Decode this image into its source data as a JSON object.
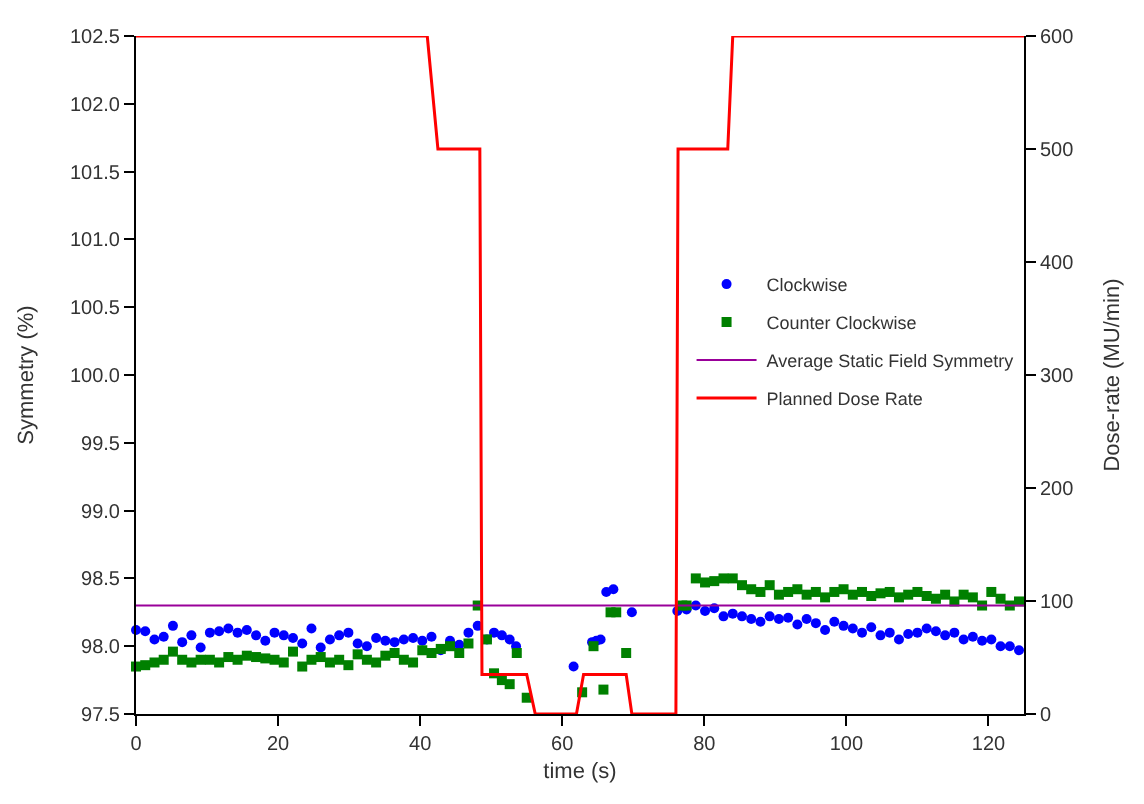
{
  "chart_data": {
    "type": "scatter",
    "xlabel": "time (s)",
    "ylabel": "Symmetry (%)",
    "y2label": "Dose-rate (MU/min)",
    "xlim": [
      0,
      125
    ],
    "xticks": [
      0,
      20,
      40,
      60,
      80,
      100,
      120
    ],
    "ylim": [
      97.5,
      102.5
    ],
    "yticks": [
      {
        "value": 97.5,
        "label": "97.5"
      },
      {
        "value": 98,
        "label": "98.0"
      },
      {
        "value": 98.5,
        "label": "98.5"
      },
      {
        "value": 99,
        "label": "99.0"
      },
      {
        "value": 99.5,
        "label": "99.5"
      },
      {
        "value": 100,
        "label": "100.0"
      },
      {
        "value": 100.5,
        "label": "100.5"
      },
      {
        "value": 101,
        "label": "101.0"
      },
      {
        "value": 101.5,
        "label": "101.5"
      },
      {
        "value": 102,
        "label": "102.0"
      },
      {
        "value": 102.5,
        "label": "102.5"
      }
    ],
    "y2lim": [
      0,
      600
    ],
    "y2ticks": [
      0,
      100,
      200,
      300,
      400,
      500,
      600
    ],
    "legend": "right",
    "series": [
      {
        "name": "Clockwise",
        "type": "scatter",
        "marker": "circle",
        "color": "#0000ff",
        "x": [
          0,
          1.3,
          2.6,
          3.9,
          5.2,
          6.5,
          7.8,
          9.1,
          10.4,
          11.7,
          13,
          14.3,
          15.6,
          16.9,
          18.2,
          19.5,
          20.8,
          22.1,
          23.4,
          24.7,
          26,
          27.3,
          28.6,
          29.9,
          31.2,
          32.5,
          33.8,
          35.1,
          36.4,
          37.7,
          39,
          40.3,
          41.6,
          42.9,
          44.2,
          45.5,
          46.8,
          48.1,
          49.4,
          50.4,
          51.5,
          52.6,
          53.5,
          61.6,
          64.2,
          64.8,
          65.4,
          66.2,
          67.2,
          69.8,
          76.2,
          77.5,
          78.8,
          80.1,
          81.4,
          82.7,
          84,
          85.3,
          86.6,
          87.9,
          89.2,
          90.5,
          91.8,
          93.1,
          94.4,
          95.7,
          97,
          98.3,
          99.6,
          100.9,
          102.2,
          103.5,
          104.8,
          106.1,
          107.4,
          108.7,
          110,
          111.3,
          112.6,
          113.9,
          115.2,
          116.5,
          117.8,
          119.1,
          120.4,
          121.7,
          123,
          124.3
        ],
        "values": [
          98.12,
          98.11,
          98.05,
          98.07,
          98.15,
          98.03,
          98.08,
          97.99,
          98.1,
          98.11,
          98.13,
          98.1,
          98.12,
          98.08,
          98.04,
          98.1,
          98.08,
          98.06,
          98.02,
          98.13,
          97.99,
          98.05,
          98.08,
          98.1,
          98.02,
          98.0,
          98.06,
          98.04,
          98.03,
          98.05,
          98.06,
          98.04,
          98.07,
          97.97,
          98.04,
          98.01,
          98.1,
          98.15,
          98.05,
          98.1,
          98.08,
          98.05,
          98.0,
          97.85,
          98.03,
          98.04,
          98.05,
          98.4,
          98.42,
          98.25,
          98.26,
          98.27,
          98.3,
          98.26,
          98.28,
          98.22,
          98.24,
          98.22,
          98.2,
          98.18,
          98.22,
          98.2,
          98.21,
          98.16,
          98.2,
          98.17,
          98.12,
          98.18,
          98.15,
          98.13,
          98.1,
          98.14,
          98.08,
          98.1,
          98.05,
          98.09,
          98.1,
          98.13,
          98.11,
          98.08,
          98.1,
          98.05,
          98.07,
          98.04,
          98.05,
          98.0,
          98.0,
          97.97
        ]
      },
      {
        "name": "Counter Clockwise",
        "type": "scatter",
        "marker": "square",
        "color": "#008000",
        "x": [
          0,
          1.3,
          2.6,
          3.9,
          5.2,
          6.5,
          7.8,
          9.1,
          10.4,
          11.7,
          13,
          14.3,
          15.6,
          16.9,
          18.2,
          19.5,
          20.8,
          22.1,
          23.4,
          24.7,
          26,
          27.3,
          28.6,
          29.9,
          31.2,
          32.5,
          33.8,
          35.1,
          36.4,
          37.7,
          39,
          40.3,
          41.6,
          42.9,
          44.2,
          45.5,
          46.8,
          48.1,
          49.4,
          50.4,
          51.5,
          52.6,
          53.6,
          55,
          62.8,
          64.4,
          65.8,
          66.8,
          67.6,
          69,
          76.9,
          77.5,
          78.8,
          80.1,
          81.4,
          82.7,
          84,
          85.3,
          86.6,
          87.9,
          89.2,
          90.5,
          91.8,
          93.1,
          94.4,
          95.7,
          97,
          98.3,
          99.6,
          100.9,
          102.2,
          103.5,
          104.8,
          106.1,
          107.4,
          108.7,
          110,
          111.3,
          112.6,
          113.9,
          115.2,
          116.5,
          117.8,
          119.1,
          120.4,
          121.7,
          123,
          124.3
        ],
        "values": [
          97.85,
          97.86,
          97.88,
          97.9,
          97.96,
          97.9,
          97.88,
          97.9,
          97.9,
          97.88,
          97.92,
          97.9,
          97.93,
          97.92,
          97.91,
          97.9,
          97.88,
          97.96,
          97.85,
          97.9,
          97.92,
          97.88,
          97.9,
          97.86,
          97.94,
          97.9,
          97.88,
          97.93,
          97.95,
          97.9,
          97.88,
          97.97,
          97.95,
          97.98,
          98.0,
          97.95,
          98.02,
          98.3,
          98.05,
          97.8,
          97.75,
          97.72,
          97.95,
          97.62,
          97.66,
          98.0,
          97.68,
          98.25,
          98.25,
          97.95,
          98.3,
          98.3,
          98.5,
          98.47,
          98.48,
          98.5,
          98.5,
          98.45,
          98.42,
          98.4,
          98.45,
          98.38,
          98.4,
          98.42,
          98.38,
          98.4,
          98.36,
          98.4,
          98.42,
          98.38,
          98.4,
          98.37,
          98.39,
          98.4,
          98.36,
          98.38,
          98.4,
          98.37,
          98.35,
          98.38,
          98.33,
          98.38,
          98.36,
          98.3,
          98.4,
          98.35,
          98.3,
          98.33
        ]
      },
      {
        "name": "Average Static Field Symmetry",
        "type": "line",
        "marker": "none",
        "color": "#990099",
        "x": [
          0,
          125
        ],
        "values": [
          98.3,
          98.3
        ]
      },
      {
        "name": "Planned Dose Rate",
        "type": "line",
        "marker": "none",
        "axis": "y2",
        "color": "#ff0000",
        "x": [
          0,
          41,
          42.5,
          48.4,
          48.7,
          55,
          56.2,
          62,
          63,
          69,
          69.8,
          76,
          76.3,
          83.3,
          84,
          125
        ],
        "values": [
          600,
          600,
          500,
          500,
          35,
          35,
          0,
          0,
          35,
          35,
          0,
          0,
          500,
          500,
          600,
          600
        ]
      }
    ]
  }
}
